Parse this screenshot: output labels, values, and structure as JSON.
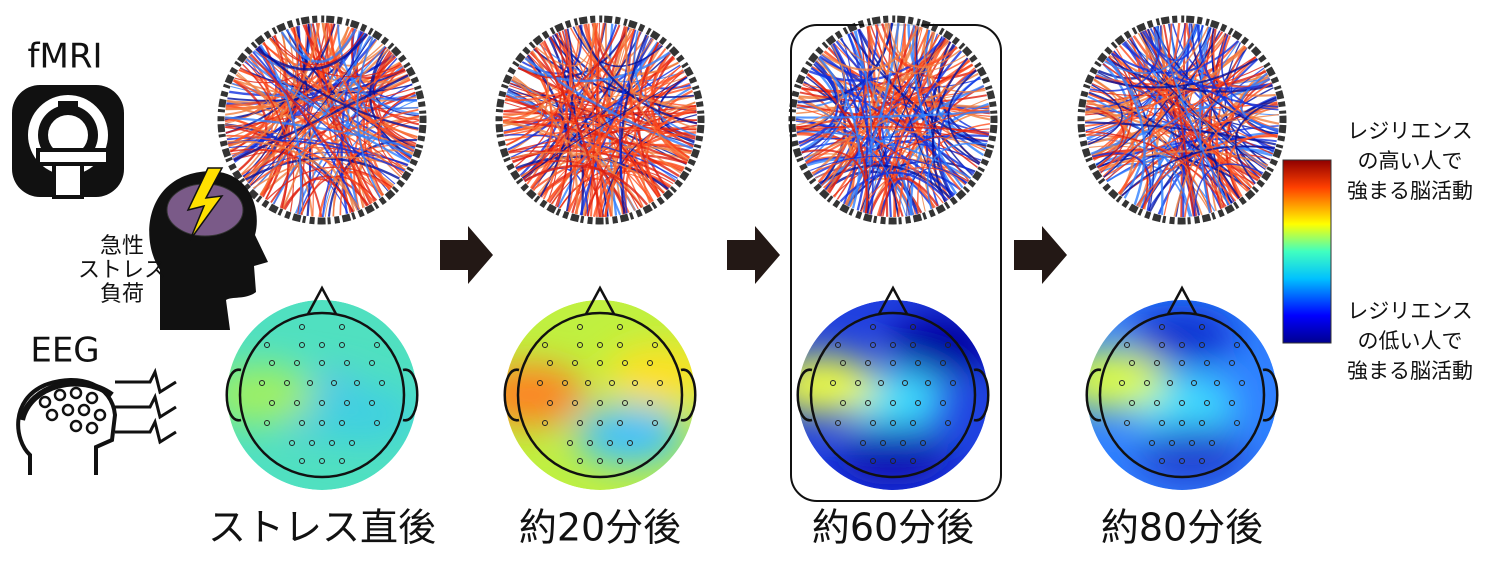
{
  "modalities": {
    "fmri": "fMRI",
    "eeg": "EEG"
  },
  "stress_label": [
    "急性",
    "ストレス",
    "負荷"
  ],
  "timepoints": [
    "ストレス直後",
    "約20分後",
    "約60分後",
    "約80分後"
  ],
  "colorbar": {
    "high": [
      "レジリエンス",
      "の高い人で",
      "強まる脳活動"
    ],
    "low": [
      "レジリエンス",
      "の低い人で",
      "強まる脳活動"
    ]
  }
}
